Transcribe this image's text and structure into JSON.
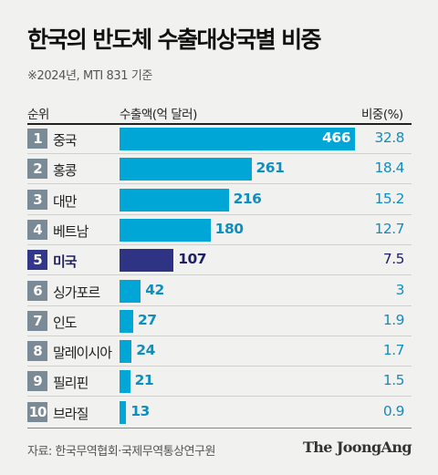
{
  "title": "한국의 반도체 수출대상국별 비중",
  "subtitle": "※2024년, MTI 831 기준",
  "headers": {
    "rank": "순위",
    "value": "수출액(억 달러)",
    "share": "비중(%)"
  },
  "colors": {
    "bar": "#00a6d6",
    "highlight": "#2f3384",
    "rank_box": "#7b8a97",
    "text_accent": "#0f8fc0"
  },
  "chart_data": {
    "type": "bar",
    "orientation": "horizontal",
    "title": "한국의 반도체 수출대상국별 비중",
    "subtitle": "※2024년, MTI 831 기준",
    "xlabel": "수출액(억 달러)",
    "xlim": [
      0,
      466
    ],
    "highlight": "미국",
    "ranks": [
      "1",
      "2",
      "3",
      "4",
      "5",
      "6",
      "7",
      "8",
      "9",
      "10"
    ],
    "categories": [
      "중국",
      "홍콩",
      "대만",
      "베트남",
      "미국",
      "싱가포르",
      "인도",
      "말레이시아",
      "필리핀",
      "브라질"
    ],
    "values": [
      466,
      261,
      216,
      180,
      107,
      42,
      27,
      24,
      21,
      13
    ],
    "shares": [
      "32.8",
      "18.4",
      "15.2",
      "12.7",
      "7.5",
      "3",
      "1.9",
      "1.7",
      "1.5",
      "0.9"
    ]
  },
  "source": "자료: 한국무역협회·국제무역통상연구원",
  "logo": "The JoongAng"
}
